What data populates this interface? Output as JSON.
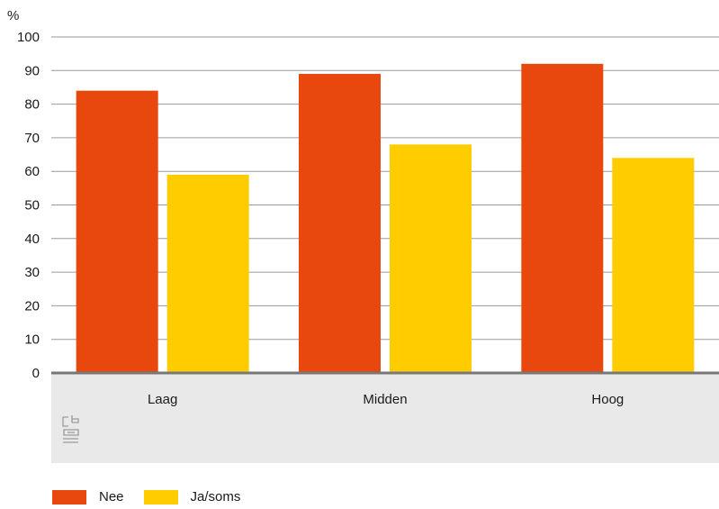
{
  "chart_data": {
    "type": "bar",
    "y_unit": "%",
    "ylim": [
      0,
      100
    ],
    "yticks": [
      0,
      10,
      20,
      30,
      40,
      50,
      60,
      70,
      80,
      90,
      100
    ],
    "grid": true,
    "legend_position": "bottom-left",
    "categories": [
      "Laag",
      "Midden",
      "Hoog"
    ],
    "series": [
      {
        "name": "Nee",
        "color": "#e8470e",
        "values": [
          84,
          89,
          92
        ]
      },
      {
        "name": "Ja/soms",
        "color": "#ffcc00",
        "values": [
          59,
          68,
          64
        ]
      }
    ]
  },
  "logo": {
    "icon": "cbs-logo-icon"
  }
}
